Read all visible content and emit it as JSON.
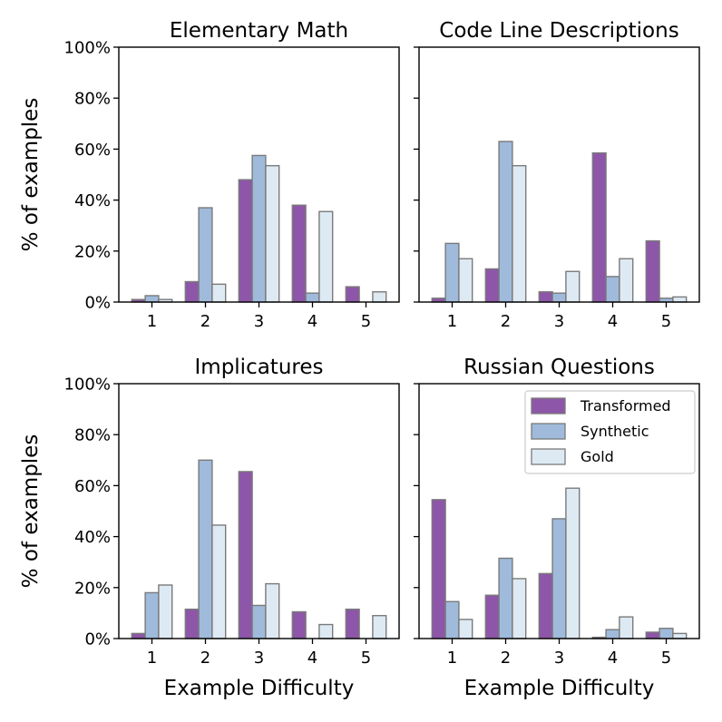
{
  "colors": {
    "transformed": "#8e56a8",
    "synthetic": "#9fbadb",
    "gold": "#deeaf3",
    "bar_edge": "#7a7a7a"
  },
  "legend": {
    "position": "top-right",
    "items": [
      "Transformed",
      "Synthetic",
      "Gold"
    ]
  },
  "ylabel": "% of examples",
  "xlabel": "Example Difficulty",
  "chart_data": [
    {
      "type": "bar",
      "title": "Elementary Math",
      "categories": [
        "1",
        "2",
        "3",
        "4",
        "5"
      ],
      "ylim": [
        0,
        100
      ],
      "yticks": [
        "0%",
        "20%",
        "40%",
        "60%",
        "80%",
        "100%"
      ],
      "series": [
        {
          "name": "Transformed",
          "values": [
            1,
            8,
            48,
            38,
            6
          ]
        },
        {
          "name": "Synthetic",
          "values": [
            2.5,
            37,
            57.5,
            3.5,
            0
          ]
        },
        {
          "name": "Gold",
          "values": [
            1,
            7,
            53.5,
            35.5,
            4
          ]
        }
      ]
    },
    {
      "type": "bar",
      "title": "Code Line Descriptions",
      "categories": [
        "1",
        "2",
        "3",
        "4",
        "5"
      ],
      "ylim": [
        0,
        100
      ],
      "yticks": [
        "0%",
        "20%",
        "40%",
        "60%",
        "80%",
        "100%"
      ],
      "series": [
        {
          "name": "Transformed",
          "values": [
            1.5,
            13,
            4,
            58.5,
            24
          ]
        },
        {
          "name": "Synthetic",
          "values": [
            23,
            63,
            3.5,
            10,
            1.5
          ]
        },
        {
          "name": "Gold",
          "values": [
            17,
            53.5,
            12,
            17,
            2
          ]
        }
      ]
    },
    {
      "type": "bar",
      "title": "Implicatures",
      "categories": [
        "1",
        "2",
        "3",
        "4",
        "5"
      ],
      "ylim": [
        0,
        100
      ],
      "yticks": [
        "0%",
        "20%",
        "40%",
        "60%",
        "80%",
        "100%"
      ],
      "series": [
        {
          "name": "Transformed",
          "values": [
            2,
            11.5,
            65.5,
            10.5,
            11.5
          ]
        },
        {
          "name": "Synthetic",
          "values": [
            18,
            70,
            13,
            0,
            0
          ]
        },
        {
          "name": "Gold",
          "values": [
            21,
            44.5,
            21.5,
            5.5,
            9
          ]
        }
      ]
    },
    {
      "type": "bar",
      "title": "Russian Questions",
      "categories": [
        "1",
        "2",
        "3",
        "4",
        "5"
      ],
      "ylim": [
        0,
        100
      ],
      "yticks": [
        "0%",
        "20%",
        "40%",
        "60%",
        "80%",
        "100%"
      ],
      "series": [
        {
          "name": "Transformed",
          "values": [
            54.5,
            17,
            25.5,
            0.5,
            2.5
          ]
        },
        {
          "name": "Synthetic",
          "values": [
            14.5,
            31.5,
            47,
            3.5,
            4
          ]
        },
        {
          "name": "Gold",
          "values": [
            7.5,
            23.5,
            59,
            8.5,
            2
          ]
        }
      ]
    }
  ]
}
